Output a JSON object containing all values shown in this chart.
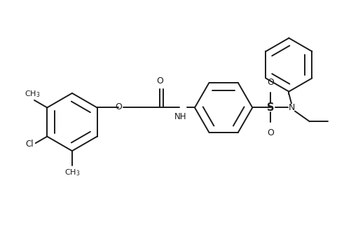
{
  "bg_color": "#ffffff",
  "line_color": "#1a1a1a",
  "line_width": 1.4,
  "font_size": 8.5,
  "fig_width": 5.02,
  "fig_height": 3.28,
  "dpi": 100,
  "xlim": [
    0,
    10
  ],
  "ylim": [
    0,
    6.5
  ]
}
